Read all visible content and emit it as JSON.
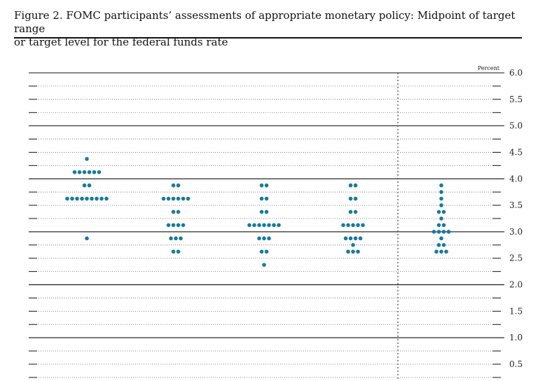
{
  "figure": {
    "title_line1": "Figure 2. FOMC participants’ assessments of appropriate monetary policy: Midpoint of target range",
    "title_line2": "or target level for the federal funds rate"
  },
  "chart_data": {
    "type": "scatter",
    "title": "Figure 2. FOMC participants’ assessments of appropriate monetary policy: Midpoint of target range or target level for the federal funds rate",
    "unit_label": "Percent",
    "ylim": [
      0.25,
      6.0
    ],
    "yticks": [
      {
        "value": 6.0,
        "label": "6.0"
      },
      {
        "value": 5.5,
        "label": "5.5"
      },
      {
        "value": 5.0,
        "label": "5.0"
      },
      {
        "value": 4.5,
        "label": "4.5"
      },
      {
        "value": 4.0,
        "label": "4.0"
      },
      {
        "value": 3.5,
        "label": "3.5"
      },
      {
        "value": 3.0,
        "label": "3.0"
      },
      {
        "value": 2.5,
        "label": "2.5"
      },
      {
        "value": 2.0,
        "label": "2.0"
      },
      {
        "value": 1.5,
        "label": "1.5"
      },
      {
        "value": 1.0,
        "label": "1.0"
      },
      {
        "value": 0.5,
        "label": "0.5"
      }
    ],
    "grid": true,
    "dot_color": "#1a7a9a",
    "columns": [
      {
        "dots": [
          {
            "y": 4.375,
            "count": 1
          },
          {
            "y": 4.125,
            "count": 6
          },
          {
            "y": 3.875,
            "count": 2
          },
          {
            "y": 3.625,
            "count": 9
          },
          {
            "y": 2.875,
            "count": 1
          }
        ]
      },
      {
        "dots": [
          {
            "y": 3.875,
            "count": 2
          },
          {
            "y": 3.625,
            "count": 6
          },
          {
            "y": 3.375,
            "count": 2
          },
          {
            "y": 3.125,
            "count": 4
          },
          {
            "y": 2.875,
            "count": 3
          },
          {
            "y": 2.625,
            "count": 2
          }
        ]
      },
      {
        "dots": [
          {
            "y": 3.875,
            "count": 2
          },
          {
            "y": 3.625,
            "count": 2
          },
          {
            "y": 3.375,
            "count": 2
          },
          {
            "y": 3.125,
            "count": 7
          },
          {
            "y": 2.875,
            "count": 3
          },
          {
            "y": 2.625,
            "count": 2
          },
          {
            "y": 2.375,
            "count": 1
          }
        ]
      },
      {
        "dots": [
          {
            "y": 3.875,
            "count": 2
          },
          {
            "y": 3.625,
            "count": 2
          },
          {
            "y": 3.375,
            "count": 2
          },
          {
            "y": 3.125,
            "count": 5
          },
          {
            "y": 2.875,
            "count": 4
          },
          {
            "y": 2.75,
            "count": 1
          },
          {
            "y": 2.625,
            "count": 3
          }
        ]
      },
      {
        "dots": [
          {
            "y": 3.875,
            "count": 1
          },
          {
            "y": 3.75,
            "count": 1
          },
          {
            "y": 3.625,
            "count": 1
          },
          {
            "y": 3.5,
            "count": 1
          },
          {
            "y": 3.375,
            "count": 2
          },
          {
            "y": 3.25,
            "count": 1
          },
          {
            "y": 3.125,
            "count": 2
          },
          {
            "y": 3.0,
            "count": 4
          },
          {
            "y": 2.875,
            "count": 1
          },
          {
            "y": 2.75,
            "count": 2
          },
          {
            "y": 2.625,
            "count": 3
          }
        ]
      }
    ]
  }
}
